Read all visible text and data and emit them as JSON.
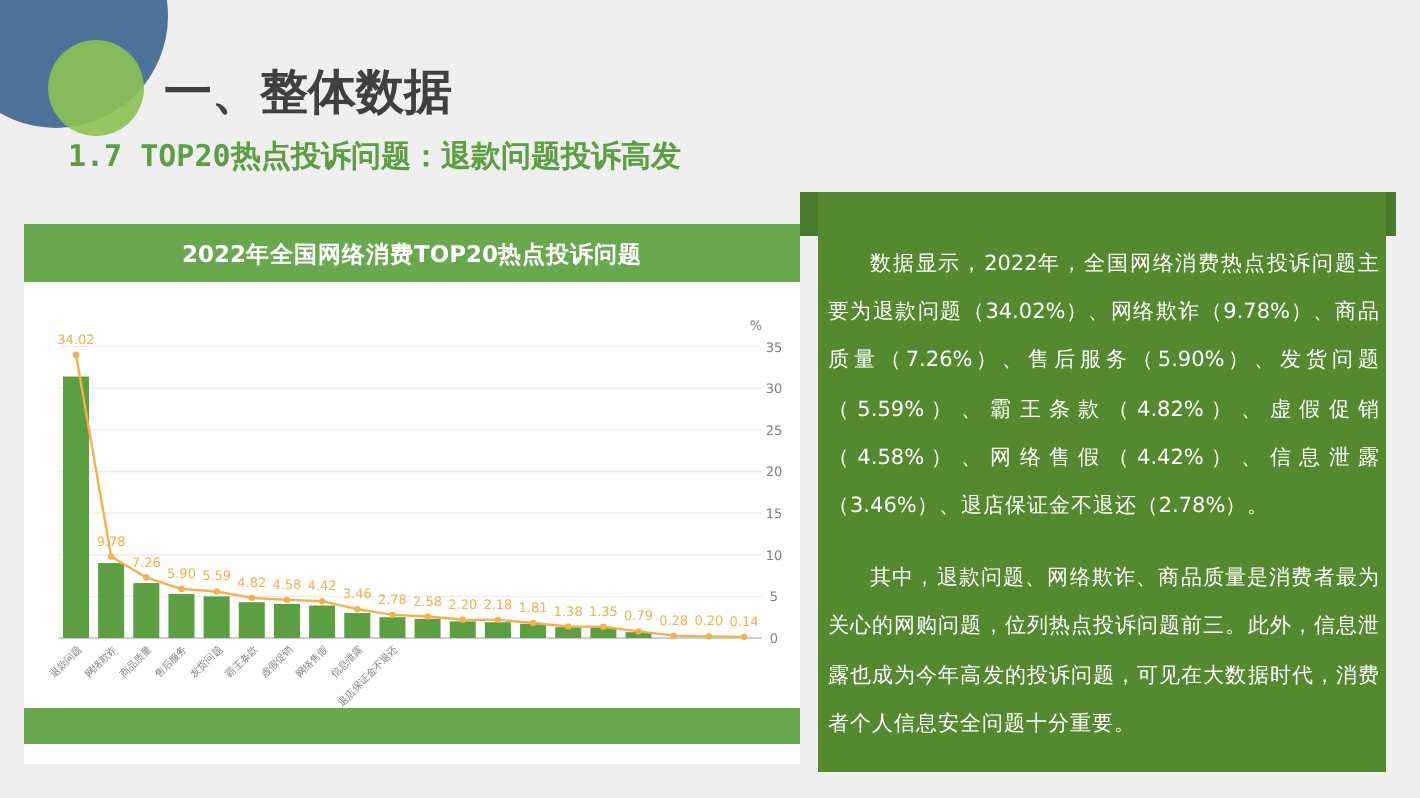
{
  "chart_data": [
    {
      "type": "other",
      "title": "一、整体数据",
      "subtitle": "1.7 TOP20热点投诉问题：退款问题投诉高发"
    },
    {
      "type": "bar",
      "title": "2022年全国网络消费TOP20热点投诉问题",
      "ylabel": "%",
      "categories": [
        "退款问题",
        "网络欺诈",
        "商品质量",
        "售后服务",
        "发货问题",
        "霸王条款",
        "虚假促销",
        "网络售假",
        "信息泄露",
        "退店保证金不退还",
        null,
        null,
        null,
        null,
        null,
        null,
        null,
        null,
        null,
        null
      ],
      "series": [
        {
          "type": "bar",
          "color": "#5c9e42",
          "values": [
            31.4,
            9.0,
            6.6,
            5.3,
            5.0,
            4.3,
            4.1,
            3.9,
            3.0,
            2.5,
            2.3,
            2.0,
            1.9,
            1.7,
            1.3,
            1.2,
            0.7,
            null,
            null,
            null
          ]
        },
        {
          "type": "line",
          "color": "#f4b04c",
          "values": [
            34.02,
            9.78,
            7.26,
            5.9,
            5.59,
            4.82,
            4.58,
            4.42,
            3.46,
            2.78,
            2.58,
            2.2,
            2.18,
            1.81,
            1.38,
            1.35,
            0.79,
            0.28,
            0.2,
            0.14
          ],
          "value_labels": [
            "34.02",
            "9.78",
            "7.26",
            "5.90",
            "5.59",
            "4.82",
            "4.58",
            "4.42",
            "3.46",
            "2.78",
            "2.58",
            "2.20",
            "2.18",
            "1.81",
            "1.38",
            "1.35",
            "0.79",
            "0.28",
            "0.20",
            "0.14"
          ]
        }
      ],
      "ylim": [
        0,
        35
      ],
      "yticks": [
        0,
        5,
        10,
        15,
        20,
        25,
        30,
        35
      ],
      "grid": "y",
      "marker": "circle"
    },
    {
      "type": "other",
      "annotations": [
        "数据显示，2022年，全国网络消费热点投诉问题主要为退款问题（34.02%）、网络欺诈（9.78%）、商品质量（7.26%）、售后服务（5.90%）、发货问题（5.59%）、霸王条款（4.82%）、虚假促销（4.58%）、网络售假（4.42%）、信息泄露（3.46%）、退店保证金不退还（2.78%）。",
        "其中，退款问题、网络欺诈、商品质量是消费者最为关心的网购问题，位列热点投诉问题前三。此外，信息泄露也成为今年高发的投诉问题，可见在大数据时代，消费者个人信息安全问题十分重要。"
      ]
    }
  ]
}
